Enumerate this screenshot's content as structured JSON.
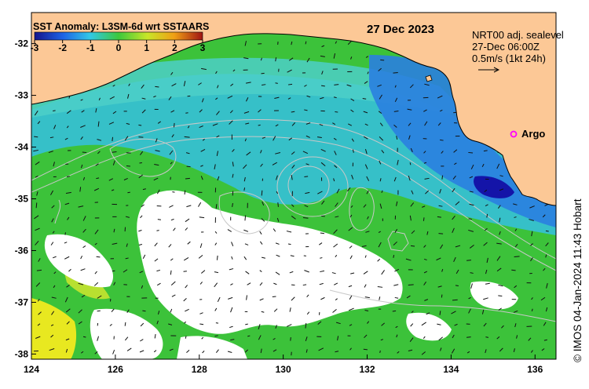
{
  "colorbar": {
    "title": "SST Anomaly: L3SM-6d wrt SSTAARS",
    "ticks": [
      "-3",
      "-2",
      "-1",
      "0",
      "1",
      "2",
      "3"
    ]
  },
  "date": "27 Dec 2023",
  "current_info": {
    "line1": "NRT00 adj. sealevel",
    "line2": "27-Dec 06:00Z",
    "line3": "0.5m/s (1kt 24h)"
  },
  "argo": {
    "label": "Argo",
    "color": "#ff00ff",
    "lon": 135.5,
    "lat": -33.6
  },
  "credit": "© IMOS 04-Jan-2024 11:43 Hobart",
  "axes": {
    "lon_ticks": [
      "124",
      "126",
      "128",
      "130",
      "132",
      "134",
      "136"
    ],
    "lat_ticks": [
      "-32",
      "-33",
      "-34",
      "-35",
      "-36",
      "-37",
      "-38"
    ]
  },
  "colors": {
    "land": "#fcc896",
    "cloud": "#ffffff",
    "ocean_green": "#3cc23a",
    "ocean_cyan": "#35c0d8",
    "ocean_blue": "#2a7fe0",
    "ocean_dark_blue": "#1414a8",
    "warm_yellow": "#e8e820",
    "contour": "#c8c8c8"
  }
}
